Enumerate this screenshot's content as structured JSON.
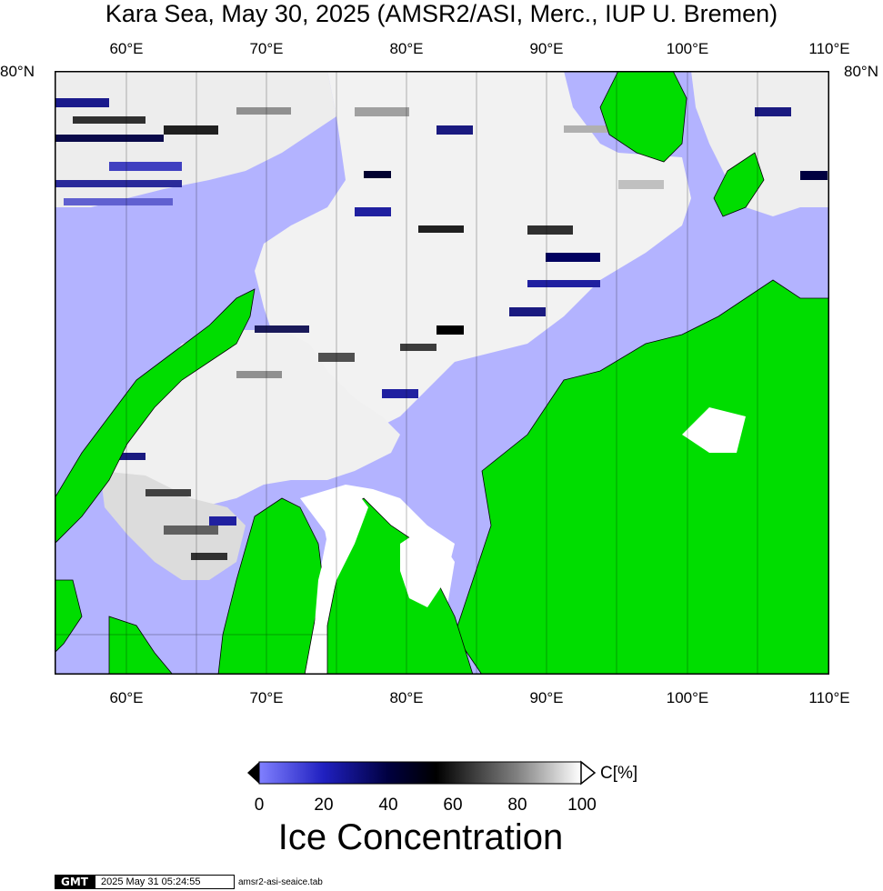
{
  "title": "Kara Sea, May 30, 2025 (AMSR2/ASI, Merc., IUP U. Bremen)",
  "map": {
    "lon_labels": [
      "60°E",
      "70°E",
      "80°E",
      "90°E",
      "100°E",
      "110°E"
    ],
    "lat_labels": [
      "80°N"
    ],
    "lon_range": [
      55,
      110
    ],
    "lat_top": 80,
    "land_color": "#00dd00",
    "open_water_color": "#b3b3ff",
    "coast_color": "#000000"
  },
  "colorbar": {
    "unit": "C[%]",
    "ticks": [
      "0",
      "20",
      "40",
      "60",
      "80",
      "100"
    ],
    "colors": [
      "#8080ff",
      "#2020c0",
      "#000040",
      "#000000",
      "#808080",
      "#ffffff"
    ],
    "title": "Ice Concentration"
  },
  "footer": {
    "logo": "GMT",
    "timestamp": "2025 May 31 05:24:55",
    "filename": "amsr2-asi-seaice.tab"
  }
}
